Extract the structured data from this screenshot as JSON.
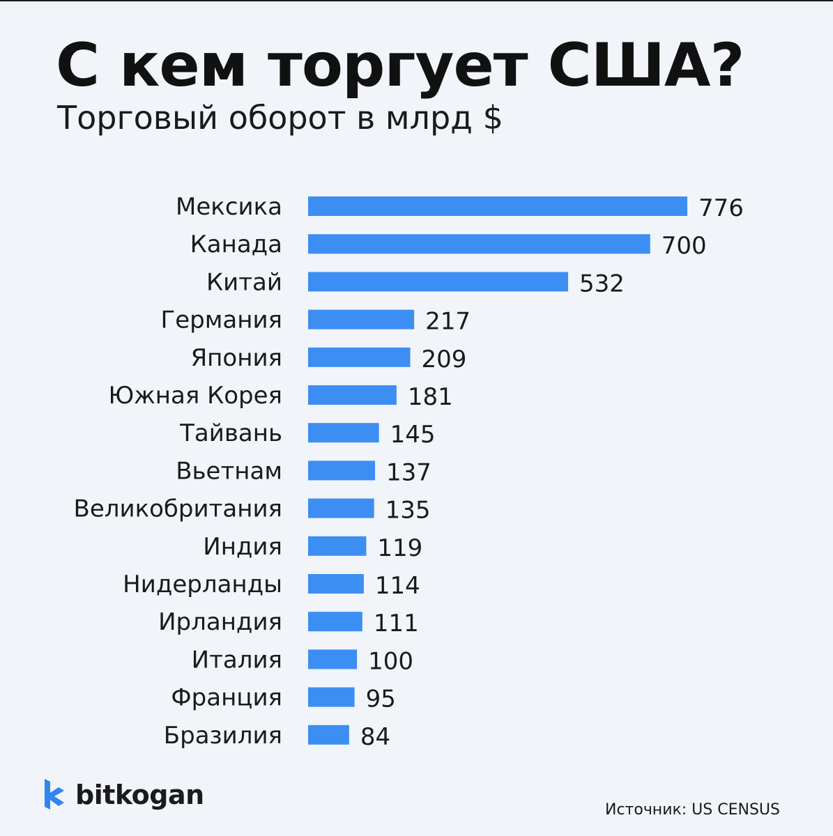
{
  "header": {
    "title": "С кем торгует США?",
    "subtitle": "Торговый оборот в млрд $"
  },
  "chart_data": {
    "type": "bar",
    "orientation": "horizontal",
    "categories": [
      "Мексика",
      "Канада",
      "Китай",
      "Германия",
      "Япония",
      "Южная Корея",
      "Тайвань",
      "Вьетнам",
      "Великобритания",
      "Индия",
      "Нидерланды",
      "Ирландия",
      "Италия",
      "Франция",
      "Бразилия"
    ],
    "values": [
      776,
      700,
      532,
      217,
      209,
      181,
      145,
      137,
      135,
      119,
      114,
      111,
      100,
      95,
      84
    ],
    "title": "С кем торгует США?",
    "subtitle": "Торговый оборот в млрд $",
    "xlim": [
      0,
      776
    ],
    "grid": false,
    "bar_color": "#3d8ef3"
  },
  "footer": {
    "brand": "bitkogan",
    "source": "Источник: US CENSUS"
  },
  "colors": {
    "background": "#f1f4f9",
    "bar": "#3d8ef3",
    "text": "#111111",
    "logo_mark": "#2f86ee"
  }
}
